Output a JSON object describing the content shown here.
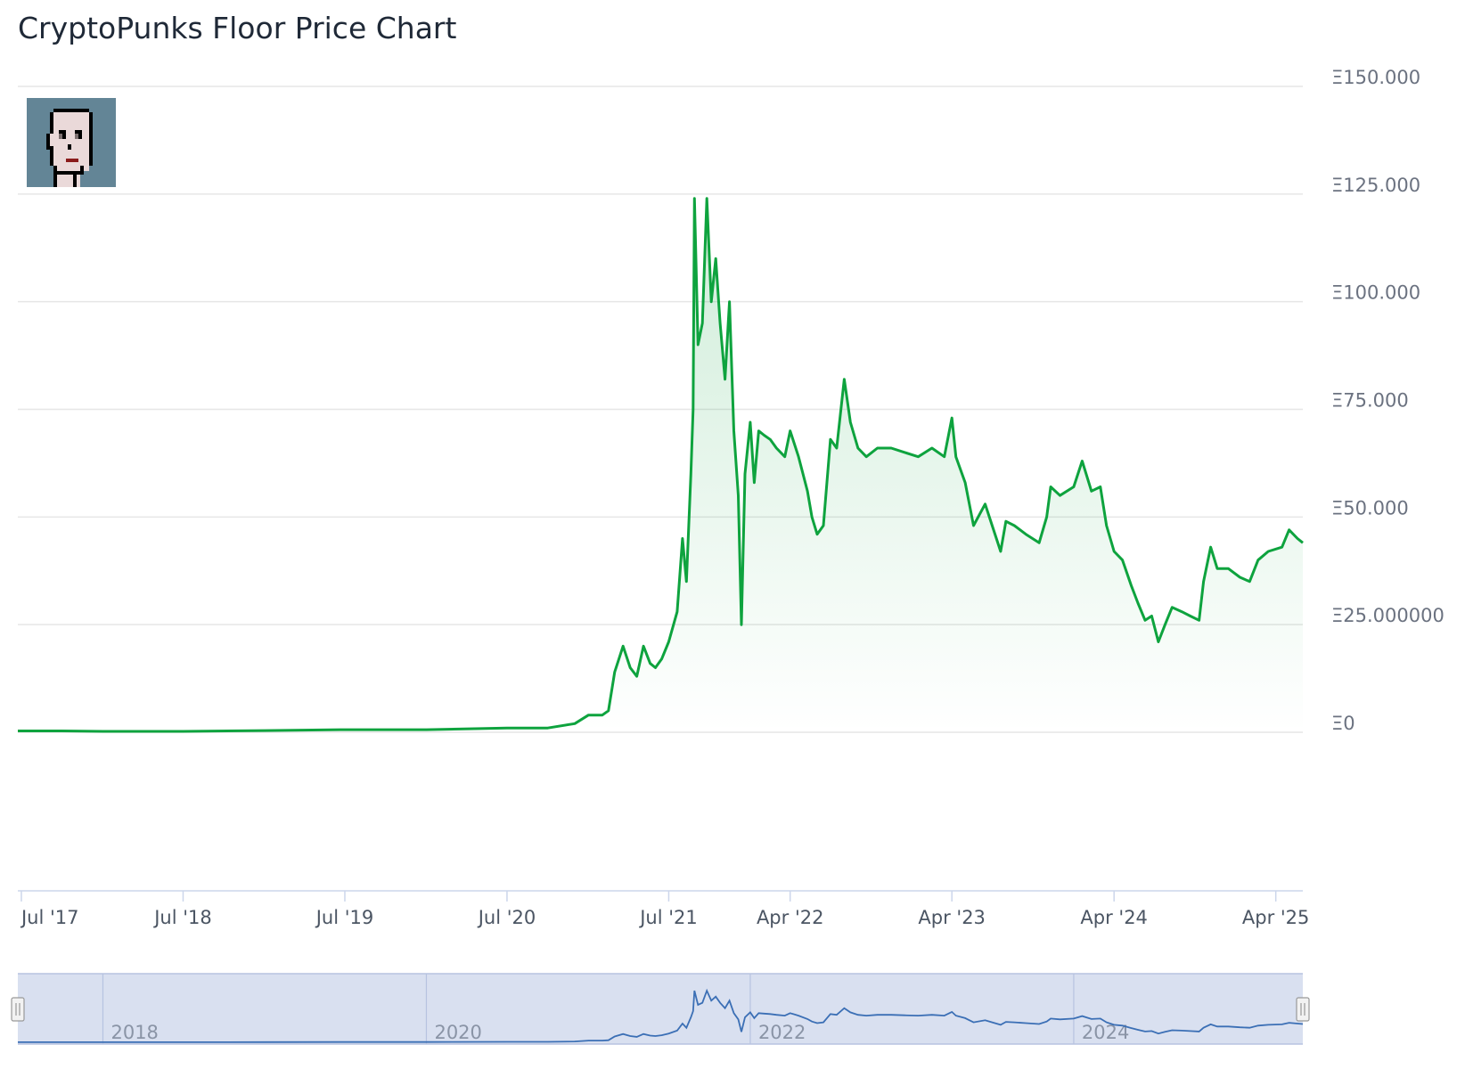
{
  "page": {
    "title": "CryptoPunks Floor Price Chart"
  },
  "colors": {
    "line": "#0ea33e",
    "navigator_line": "#3b6fb5",
    "navigator_fill": "#d9e0f0"
  },
  "chart_data": {
    "type": "area",
    "title": "CryptoPunks Floor Price Chart",
    "xlabel": "",
    "ylabel": "",
    "x_range": [
      "2017-06-23",
      "2025-06-01"
    ],
    "ylim": [
      0,
      150
    ],
    "y_ticks": [
      {
        "value": 0,
        "label": "Ξ0"
      },
      {
        "value": 25,
        "label": "Ξ25.000000"
      },
      {
        "value": 50,
        "label": "Ξ50.000"
      },
      {
        "value": 75,
        "label": "Ξ75.000"
      },
      {
        "value": 100,
        "label": "Ξ100.000"
      },
      {
        "value": 125,
        "label": "Ξ125.000"
      },
      {
        "value": 150,
        "label": "Ξ150.000"
      }
    ],
    "x_ticks": [
      {
        "date": "2017-07-01",
        "label": "Jul '17"
      },
      {
        "date": "2018-07-01",
        "label": "Jul '18"
      },
      {
        "date": "2019-07-01",
        "label": "Jul '19"
      },
      {
        "date": "2020-07-01",
        "label": "Jul '20"
      },
      {
        "date": "2021-07-01",
        "label": "Jul '21"
      },
      {
        "date": "2022-04-01",
        "label": "Apr '22"
      },
      {
        "date": "2023-04-01",
        "label": "Apr '23"
      },
      {
        "date": "2024-04-01",
        "label": "Apr '24"
      },
      {
        "date": "2025-04-01",
        "label": "Apr '25"
      }
    ],
    "navigator_ticks": [
      {
        "date": "2018-01-01",
        "label": "2018"
      },
      {
        "date": "2020-01-01",
        "label": "2020"
      },
      {
        "date": "2022-01-01",
        "label": "2022"
      },
      {
        "date": "2024-01-01",
        "label": "2024"
      }
    ],
    "grid": true,
    "legend": "none",
    "series": [
      {
        "name": "",
        "points": [
          [
            "2017-06-23",
            0.3
          ],
          [
            "2017-10-01",
            0.3
          ],
          [
            "2018-01-01",
            0.2
          ],
          [
            "2018-07-01",
            0.2
          ],
          [
            "2019-01-01",
            0.4
          ],
          [
            "2019-07-01",
            0.6
          ],
          [
            "2020-01-01",
            0.6
          ],
          [
            "2020-07-01",
            1.0
          ],
          [
            "2020-10-01",
            1.0
          ],
          [
            "2020-12-01",
            2.0
          ],
          [
            "2021-01-01",
            4.0
          ],
          [
            "2021-02-01",
            4.0
          ],
          [
            "2021-02-15",
            5.0
          ],
          [
            "2021-03-01",
            14.0
          ],
          [
            "2021-03-20",
            20.0
          ],
          [
            "2021-04-05",
            15.0
          ],
          [
            "2021-04-20",
            13.0
          ],
          [
            "2021-05-05",
            20.0
          ],
          [
            "2021-05-20",
            16.0
          ],
          [
            "2021-06-01",
            15.0
          ],
          [
            "2021-06-15",
            17.0
          ],
          [
            "2021-07-01",
            21.0
          ],
          [
            "2021-07-20",
            28.0
          ],
          [
            "2021-08-01",
            45.0
          ],
          [
            "2021-08-10",
            35.0
          ],
          [
            "2021-08-20",
            60.0
          ],
          [
            "2021-08-25",
            75.0
          ],
          [
            "2021-08-28",
            124.0
          ],
          [
            "2021-09-05",
            90.0
          ],
          [
            "2021-09-15",
            95.0
          ],
          [
            "2021-09-25",
            124.0
          ],
          [
            "2021-10-05",
            100.0
          ],
          [
            "2021-10-15",
            110.0
          ],
          [
            "2021-10-25",
            95.0
          ],
          [
            "2021-11-05",
            82.0
          ],
          [
            "2021-11-15",
            100.0
          ],
          [
            "2021-11-25",
            70.0
          ],
          [
            "2021-12-05",
            55.0
          ],
          [
            "2021-12-12",
            25.0
          ],
          [
            "2021-12-20",
            60.0
          ],
          [
            "2022-01-01",
            72.0
          ],
          [
            "2022-01-10",
            58.0
          ],
          [
            "2022-01-20",
            70.0
          ],
          [
            "2022-02-01",
            69.0
          ],
          [
            "2022-02-15",
            68.0
          ],
          [
            "2022-03-01",
            66.0
          ],
          [
            "2022-03-20",
            64.0
          ],
          [
            "2022-04-01",
            70.0
          ],
          [
            "2022-04-20",
            64.0
          ],
          [
            "2022-05-10",
            56.0
          ],
          [
            "2022-05-20",
            50.0
          ],
          [
            "2022-06-01",
            46.0
          ],
          [
            "2022-06-15",
            48.0
          ],
          [
            "2022-07-01",
            68.0
          ],
          [
            "2022-07-15",
            66.0
          ],
          [
            "2022-08-01",
            82.0
          ],
          [
            "2022-08-15",
            72.0
          ],
          [
            "2022-09-01",
            66.0
          ],
          [
            "2022-09-20",
            64.0
          ],
          [
            "2022-10-15",
            66.0
          ],
          [
            "2022-11-15",
            66.0
          ],
          [
            "2022-12-15",
            65.0
          ],
          [
            "2023-01-15",
            64.0
          ],
          [
            "2023-02-15",
            66.0
          ],
          [
            "2023-03-15",
            64.0
          ],
          [
            "2023-04-01",
            73.0
          ],
          [
            "2023-04-10",
            64.0
          ],
          [
            "2023-05-01",
            58.0
          ],
          [
            "2023-05-20",
            48.0
          ],
          [
            "2023-06-15",
            53.0
          ],
          [
            "2023-07-01",
            48.0
          ],
          [
            "2023-07-20",
            42.0
          ],
          [
            "2023-08-01",
            49.0
          ],
          [
            "2023-08-20",
            48.0
          ],
          [
            "2023-09-15",
            46.0
          ],
          [
            "2023-10-15",
            44.0
          ],
          [
            "2023-11-01",
            50.0
          ],
          [
            "2023-11-10",
            57.0
          ],
          [
            "2023-12-01",
            55.0
          ],
          [
            "2024-01-01",
            57.0
          ],
          [
            "2024-01-20",
            63.0
          ],
          [
            "2024-02-10",
            56.0
          ],
          [
            "2024-03-01",
            57.0
          ],
          [
            "2024-03-15",
            48.0
          ],
          [
            "2024-04-01",
            42.0
          ],
          [
            "2024-04-20",
            40.0
          ],
          [
            "2024-05-10",
            34.0
          ],
          [
            "2024-05-25",
            30.0
          ],
          [
            "2024-06-10",
            26.0
          ],
          [
            "2024-06-25",
            27.0
          ],
          [
            "2024-07-10",
            21.0
          ],
          [
            "2024-07-25",
            25.0
          ],
          [
            "2024-08-10",
            29.0
          ],
          [
            "2024-09-01",
            28.0
          ],
          [
            "2024-09-20",
            27.0
          ],
          [
            "2024-10-10",
            26.0
          ],
          [
            "2024-10-20",
            35.0
          ],
          [
            "2024-11-05",
            43.0
          ],
          [
            "2024-11-20",
            38.0
          ],
          [
            "2024-12-15",
            38.0
          ],
          [
            "2025-01-10",
            36.0
          ],
          [
            "2025-02-01",
            35.0
          ],
          [
            "2025-02-20",
            40.0
          ],
          [
            "2025-03-15",
            42.0
          ],
          [
            "2025-04-15",
            43.0
          ],
          [
            "2025-05-01",
            47.0
          ],
          [
            "2025-05-20",
            45.0
          ],
          [
            "2025-06-01",
            44.0
          ]
        ]
      }
    ]
  }
}
